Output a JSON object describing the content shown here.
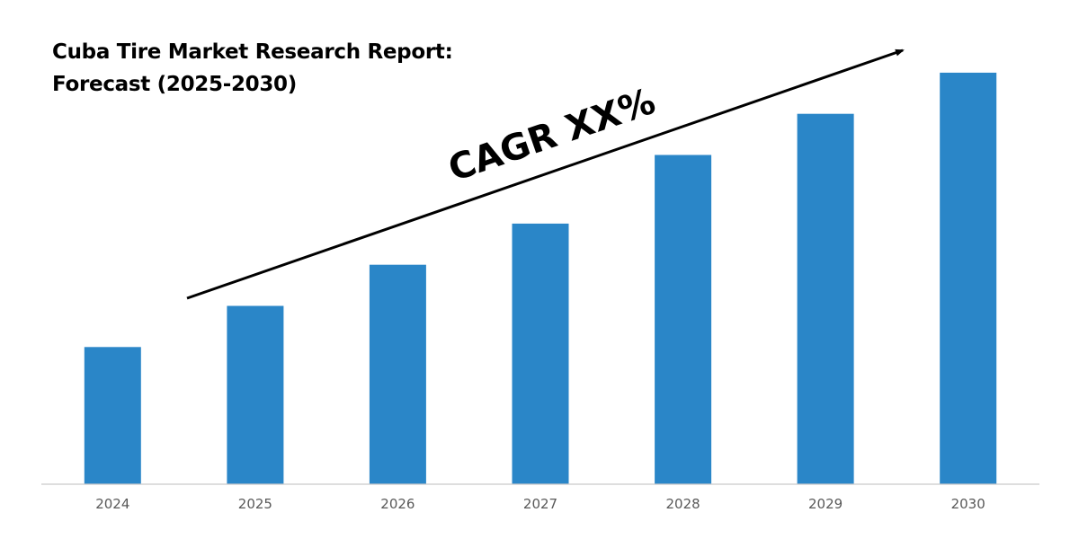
{
  "chart_data": {
    "type": "bar",
    "title_line1": "Cuba Tire Market Research Report:",
    "title_line2": "Forecast (2025-2030)",
    "categories": [
      "2024",
      "2025",
      "2026",
      "2027",
      "2028",
      "2029",
      "2030"
    ],
    "values": [
      30,
      39,
      48,
      57,
      72,
      81,
      90
    ],
    "ylim": [
      0,
      100
    ],
    "annotation": "CAGR XX%",
    "grid": false,
    "legend": "none",
    "colors": {
      "bar": "#2A86C8",
      "axis": "#C9C9C9",
      "tick_label": "#595959",
      "annotation": "#000000",
      "arrow": "#000000"
    }
  }
}
